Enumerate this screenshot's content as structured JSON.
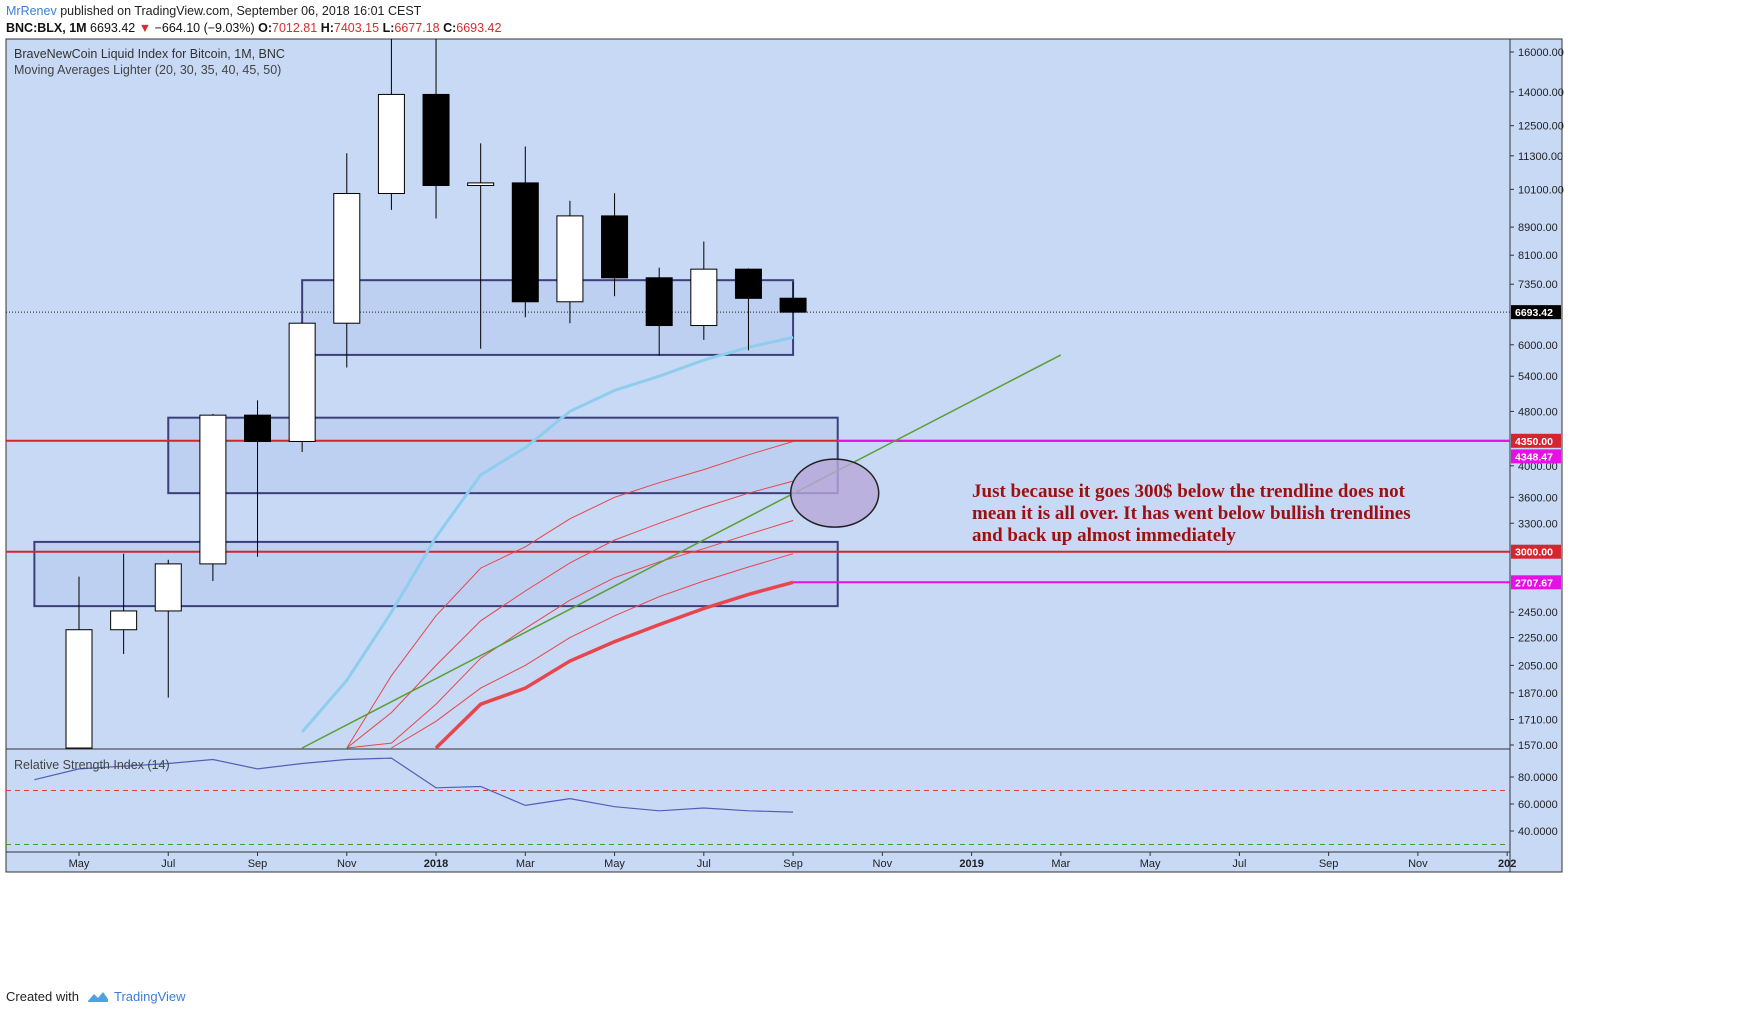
{
  "header": {
    "author": "MrRenev",
    "published": " published on TradingView.com, September 06, 2018 16:01 CEST",
    "symbol": "BNC:BLX, 1M",
    "last": "6693.42",
    "arrow": "▼",
    "change": "−664.10 (−9.03%)",
    "o_label": "O:",
    "o": "7012.81",
    "h_label": "H:",
    "h": "7403.15",
    "l_label": "L:",
    "l": "6677.18",
    "c_label": "C:",
    "c": "6693.42"
  },
  "footer": {
    "created": "Created with",
    "brand": "TradingView"
  },
  "colors": {
    "background": "#c7d9f5",
    "zone_fill": "#bdd0f2",
    "zone_border": "#3d3f7a",
    "red_line": "#d4262e",
    "magenta_line": "#e610e6",
    "ma_line": "#e8454c",
    "ma_blue": "#8fcdef",
    "trend": "#5a9e35",
    "rsi_line": "#5060b8",
    "annotation": "#9b1010"
  },
  "chart_data": [
    {
      "type": "candlestick",
      "title": "BraveNewCoin Liquid Index for Bitcoin, 1M, BNC",
      "indicator": "Moving Averages Lighter (20, 30, 35, 40, 45, 50)",
      "y_scale": "log",
      "ylim": [
        1570,
        16000
      ],
      "x_ticks": [
        "May",
        "Jul",
        "Sep",
        "Nov",
        "2018",
        "Mar",
        "May",
        "Jul",
        "Sep",
        "Nov",
        "2019",
        "Mar",
        "May",
        "Jul",
        "Sep",
        "Nov",
        "202"
      ],
      "y_ticks": [
        "16000.00",
        "14000.00",
        "12500.00",
        "11300.00",
        "10100.00",
        "8900.00",
        "8100.00",
        "7350.00",
        "6000.00",
        "5400.00",
        "4800.00",
        "4000.00",
        "3600.00",
        "3300.00",
        "2450.00",
        "2250.00",
        "2050.00",
        "1870.00",
        "1710.00",
        "1570.00"
      ],
      "candles": [
        {
          "date": "2017-05",
          "o": 1360,
          "h": 2760,
          "l": 1360,
          "c": 2310
        },
        {
          "date": "2017-06",
          "o": 2310,
          "h": 2980,
          "l": 2130,
          "c": 2460
        },
        {
          "date": "2017-07",
          "o": 2460,
          "h": 2920,
          "l": 1840,
          "c": 2880
        },
        {
          "date": "2017-08",
          "o": 2880,
          "h": 4760,
          "l": 2720,
          "c": 4740
        },
        {
          "date": "2017-09",
          "o": 4740,
          "h": 4980,
          "l": 2950,
          "c": 4340
        },
        {
          "date": "2017-10",
          "o": 4340,
          "h": 6470,
          "l": 4190,
          "c": 6450
        },
        {
          "date": "2017-11",
          "o": 6450,
          "h": 11400,
          "l": 5560,
          "c": 9960
        },
        {
          "date": "2017-12",
          "o": 9960,
          "h": 19700,
          "l": 9430,
          "c": 13880
        },
        {
          "date": "2018-01",
          "o": 13880,
          "h": 17200,
          "l": 9160,
          "c": 10230
        },
        {
          "date": "2018-02",
          "o": 10230,
          "h": 11780,
          "l": 5920,
          "c": 10320
        },
        {
          "date": "2018-03",
          "o": 10320,
          "h": 11660,
          "l": 6580,
          "c": 6930
        },
        {
          "date": "2018-04",
          "o": 6930,
          "h": 9720,
          "l": 6450,
          "c": 9240
        },
        {
          "date": "2018-05",
          "o": 9240,
          "h": 9970,
          "l": 7060,
          "c": 7510
        },
        {
          "date": "2018-06",
          "o": 7510,
          "h": 7770,
          "l": 5780,
          "c": 6400
        },
        {
          "date": "2018-07",
          "o": 6400,
          "h": 8480,
          "l": 6100,
          "c": 7730
        },
        {
          "date": "2018-08",
          "o": 7730,
          "h": 7750,
          "l": 5890,
          "c": 7010
        },
        {
          "date": "2018-09",
          "o": 7012.81,
          "h": 7403.15,
          "l": 6677.18,
          "c": 6693.42
        }
      ],
      "moving_averages": [
        {
          "dates": [
            "2017-10",
            "2017-11",
            "2017-12",
            "2018-01",
            "2018-02",
            "2018-03",
            "2018-04",
            "2018-05",
            "2018-06",
            "2018-07",
            "2018-08",
            "2018-09"
          ],
          "values": [
            1640,
            1950,
            2450,
            3150,
            3880,
            4250,
            4800,
            5150,
            5400,
            5700,
            5950,
            6150
          ]
        },
        {
          "dates": [
            "2017-11",
            "2017-12",
            "2018-01",
            "2018-02",
            "2018-03",
            "2018-04",
            "2018-05",
            "2018-06",
            "2018-07",
            "2018-08",
            "2018-09"
          ],
          "values": [
            1490,
            1980,
            2420,
            2840,
            3050,
            3350,
            3600,
            3780,
            3950,
            4150,
            4340
          ]
        },
        {
          "dates": [
            "2017-11",
            "2017-12",
            "2018-01",
            "2018-02",
            "2018-03",
            "2018-04",
            "2018-05",
            "2018-06",
            "2018-07",
            "2018-08",
            "2018-09"
          ],
          "values": [
            1440,
            1750,
            2050,
            2380,
            2630,
            2890,
            3120,
            3300,
            3480,
            3650,
            3800
          ]
        },
        {
          "dates": [
            "2017-11",
            "2017-12",
            "2018-01",
            "2018-02",
            "2018-03",
            "2018-04",
            "2018-05",
            "2018-06",
            "2018-07",
            "2018-08",
            "2018-09"
          ],
          "values": [
            1410,
            1580,
            1800,
            2100,
            2320,
            2550,
            2750,
            2900,
            3030,
            3180,
            3330
          ]
        },
        {
          "dates": [
            "2017-12",
            "2018-01",
            "2018-02",
            "2018-03",
            "2018-04",
            "2018-05",
            "2018-06",
            "2018-07",
            "2018-08",
            "2018-09"
          ],
          "values": [
            1520,
            1700,
            1900,
            2050,
            2250,
            2420,
            2580,
            2720,
            2850,
            2980
          ]
        },
        {
          "dates": [
            "2018-01",
            "2018-02",
            "2018-03",
            "2018-04",
            "2018-05",
            "2018-06",
            "2018-07",
            "2018-08",
            "2018-09"
          ],
          "values": [
            1550,
            1800,
            1900,
            2080,
            2220,
            2350,
            2480,
            2600,
            2707.67
          ]
        }
      ],
      "trendline": {
        "from": {
          "date": "2017-10",
          "value": 1520
        },
        "to": {
          "date": "2019-03",
          "value": 5800
        }
      },
      "zones": [
        {
          "from": "2017-10",
          "to": "2018-09",
          "low": 5800,
          "high": 7450
        },
        {
          "from": "2017-07",
          "to": "2018-10",
          "low": 3650,
          "high": 4700
        },
        {
          "from": "2017-04",
          "to": "2018-10",
          "low": 2500,
          "high": 3100
        }
      ],
      "highlight_ellipse": {
        "date": "2018-10",
        "value": 3750
      },
      "horizontal_lines": [
        {
          "value": 4350.0,
          "label": "4350.00",
          "color": "red"
        },
        {
          "value": 3000.0,
          "label": "3000.00",
          "color": "red"
        },
        {
          "value": 2707.67,
          "label": "2707.67",
          "color": "magenta"
        }
      ],
      "price_labels": [
        {
          "value": 6693.42,
          "label": "6693.42"
        },
        {
          "value": 4348.47,
          "label": "4348.47"
        }
      ],
      "annotation": [
        "Just because it goes 300$ below the trendline does not",
        "mean it is all over. It has went below bullish trendlines",
        "and back up almost immediately"
      ]
    },
    {
      "type": "line",
      "title": "Relative Strength Index (14)",
      "ylim": [
        30,
        100
      ],
      "y_ticks": [
        "80.0000",
        "60.0000",
        "40.0000"
      ],
      "levels": [
        70,
        30
      ],
      "dates": [
        "2017-04",
        "2017-05",
        "2017-06",
        "2017-07",
        "2017-08",
        "2017-09",
        "2017-10",
        "2017-11",
        "2017-12",
        "2018-01",
        "2018-02",
        "2018-03",
        "2018-04",
        "2018-05",
        "2018-06",
        "2018-07",
        "2018-08",
        "2018-09"
      ],
      "values": [
        78,
        86,
        88,
        90,
        93,
        86,
        90,
        93,
        94,
        72,
        73,
        59,
        64,
        58,
        55,
        57,
        55,
        54
      ]
    }
  ]
}
